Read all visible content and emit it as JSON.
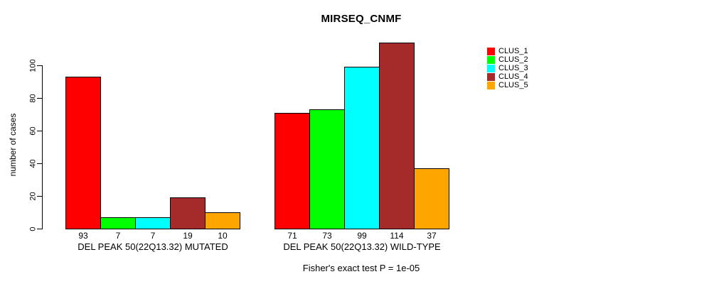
{
  "title": "MIRSEQ_CNMF",
  "chart_data": {
    "type": "bar",
    "title": "MIRSEQ_CNMF",
    "ylabel": "number of cases",
    "xlabel": "",
    "yticks": [
      0,
      20,
      40,
      60,
      80,
      100
    ],
    "ylim": [
      0,
      100
    ],
    "grid": false,
    "legend_position": "right-outside",
    "legend": [
      {
        "label": "CLUS_1",
        "color": "#ff0000"
      },
      {
        "label": "CLUS_2",
        "color": "#00ff00"
      },
      {
        "label": "CLUS_3",
        "color": "#00ffff"
      },
      {
        "label": "CLUS_4",
        "color": "#a52a2a"
      },
      {
        "label": "CLUS_5",
        "color": "#ffa500"
      }
    ],
    "groups": [
      {
        "label": "DEL PEAK 50(22Q13.32) MUTATED",
        "values": [
          93,
          7,
          7,
          19,
          10
        ]
      },
      {
        "label": "DEL PEAK 50(22Q13.32) WILD-TYPE",
        "values": [
          71,
          73,
          99,
          114,
          37
        ]
      }
    ],
    "annotation": "Fisher's exact test P = 1e-05"
  }
}
